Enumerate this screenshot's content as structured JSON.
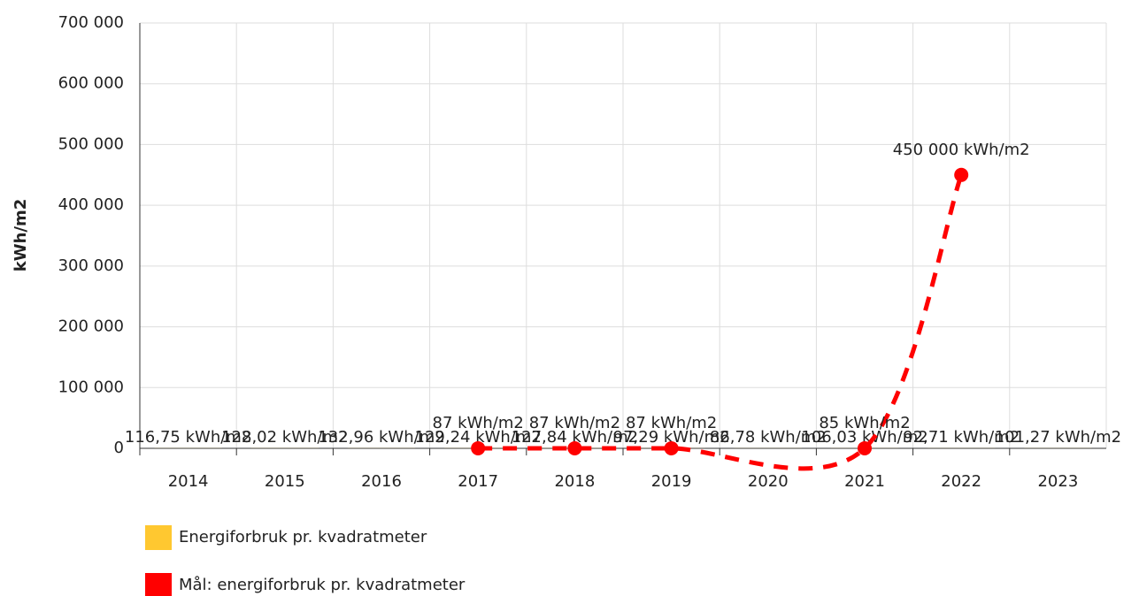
{
  "chart_data": {
    "type": "bar_line",
    "y_label": "kWh/m2",
    "categories": [
      "2014",
      "2015",
      "2016",
      "2017",
      "2018",
      "2019",
      "2020",
      "2021",
      "2022",
      "2023"
    ],
    "ylim": [
      0,
      700000
    ],
    "yticks": [
      0,
      {
        "value": 100000,
        "label": "100 000"
      },
      {
        "value": 200000,
        "label": "200 000"
      },
      {
        "value": 300000,
        "label": "300 000"
      },
      {
        "value": 400000,
        "label": "400 000"
      },
      {
        "value": 500000,
        "label": "500 000"
      },
      {
        "value": 600000,
        "label": "600 000"
      },
      {
        "value": 700000,
        "label": "700 000"
      }
    ],
    "grid": true,
    "series": [
      {
        "name": "Energiforbruk pr. kvadratmeter",
        "type": "bar",
        "color": "#ffc830",
        "values": [
          116.75,
          128.02,
          132.96,
          129.24,
          127.84,
          97.29,
          86.78,
          106.03,
          92.71,
          101.27
        ],
        "value_labels": [
          "116,75 kWh/m2",
          "128,02 kWh/m2",
          "132,96 kWh/m2",
          "129,24 kWh/m2",
          "127,84 kWh/m2",
          "97,29 kWh/m2",
          "86,78 kWh/m2",
          "106,03 kWh/m2",
          "92,71 kWh/m2",
          "101,27 kWh/m2"
        ]
      },
      {
        "name": "Mål: energiforbruk pr. kvadratmeter",
        "type": "line",
        "color": "#ff0000",
        "x": [
          2017,
          2018,
          2019,
          2021,
          2022
        ],
        "values": [
          87,
          87,
          87,
          85,
          450000
        ],
        "value_labels": [
          "87 kWh/m2",
          "87 kWh/m2",
          "87 kWh/m2",
          "85 kWh/m2",
          "450 000 kWh/m2"
        ]
      }
    ]
  }
}
